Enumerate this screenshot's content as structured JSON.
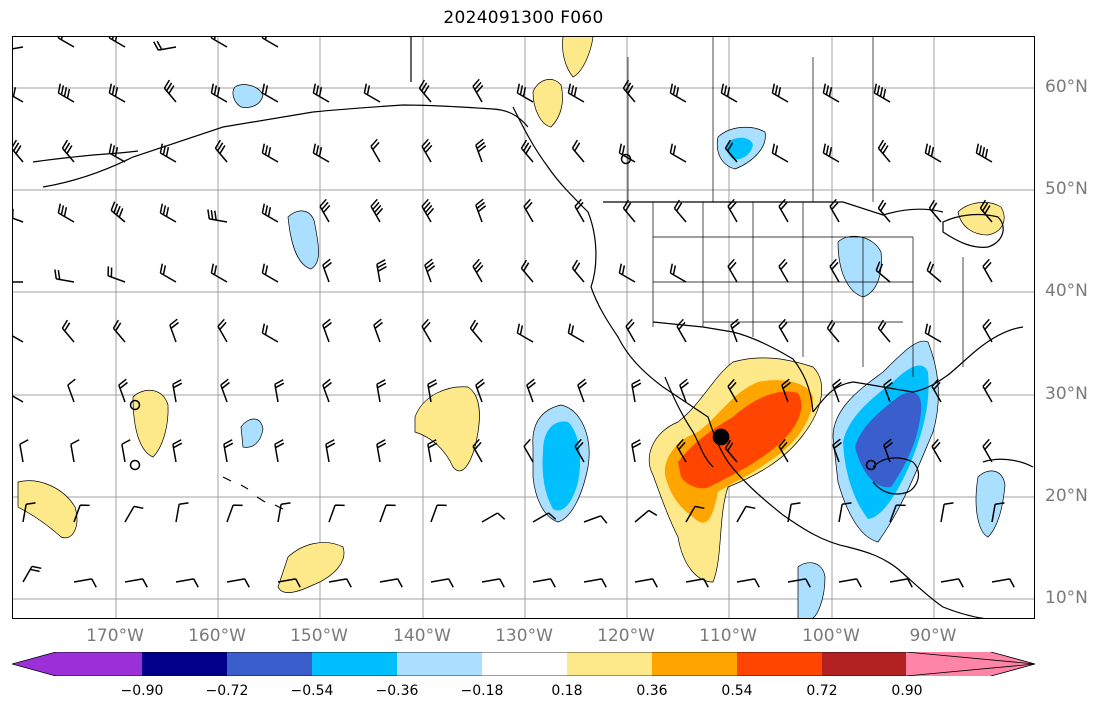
{
  "title": "2024091300 F060",
  "lat_labels": [
    "60°N",
    "50°N",
    "40°N",
    "30°N",
    "20°N",
    "10°N"
  ],
  "lon_labels": [
    "170°W",
    "160°W",
    "150°W",
    "140°W",
    "130°W",
    "120°W",
    "110°W",
    "100°W",
    "90°W"
  ],
  "colorbar": {
    "colors": [
      "#9b30d9",
      "#00008b",
      "#3a5fcd",
      "#00bfff",
      "#aadfff",
      "#ffffff",
      "#fde98a",
      "#ffa500",
      "#ff4500",
      "#b22222",
      "#ff85a8"
    ],
    "tick_labels": [
      "−0.90",
      "−0.72",
      "−0.54",
      "−0.36",
      "−0.18",
      "0.18",
      "0.36",
      "0.54",
      "0.72",
      "0.90"
    ]
  },
  "legend_colors": {
    "coast": "#000000",
    "grid": "#a0a0a0",
    "axis_text": "#7a7a7a"
  }
}
